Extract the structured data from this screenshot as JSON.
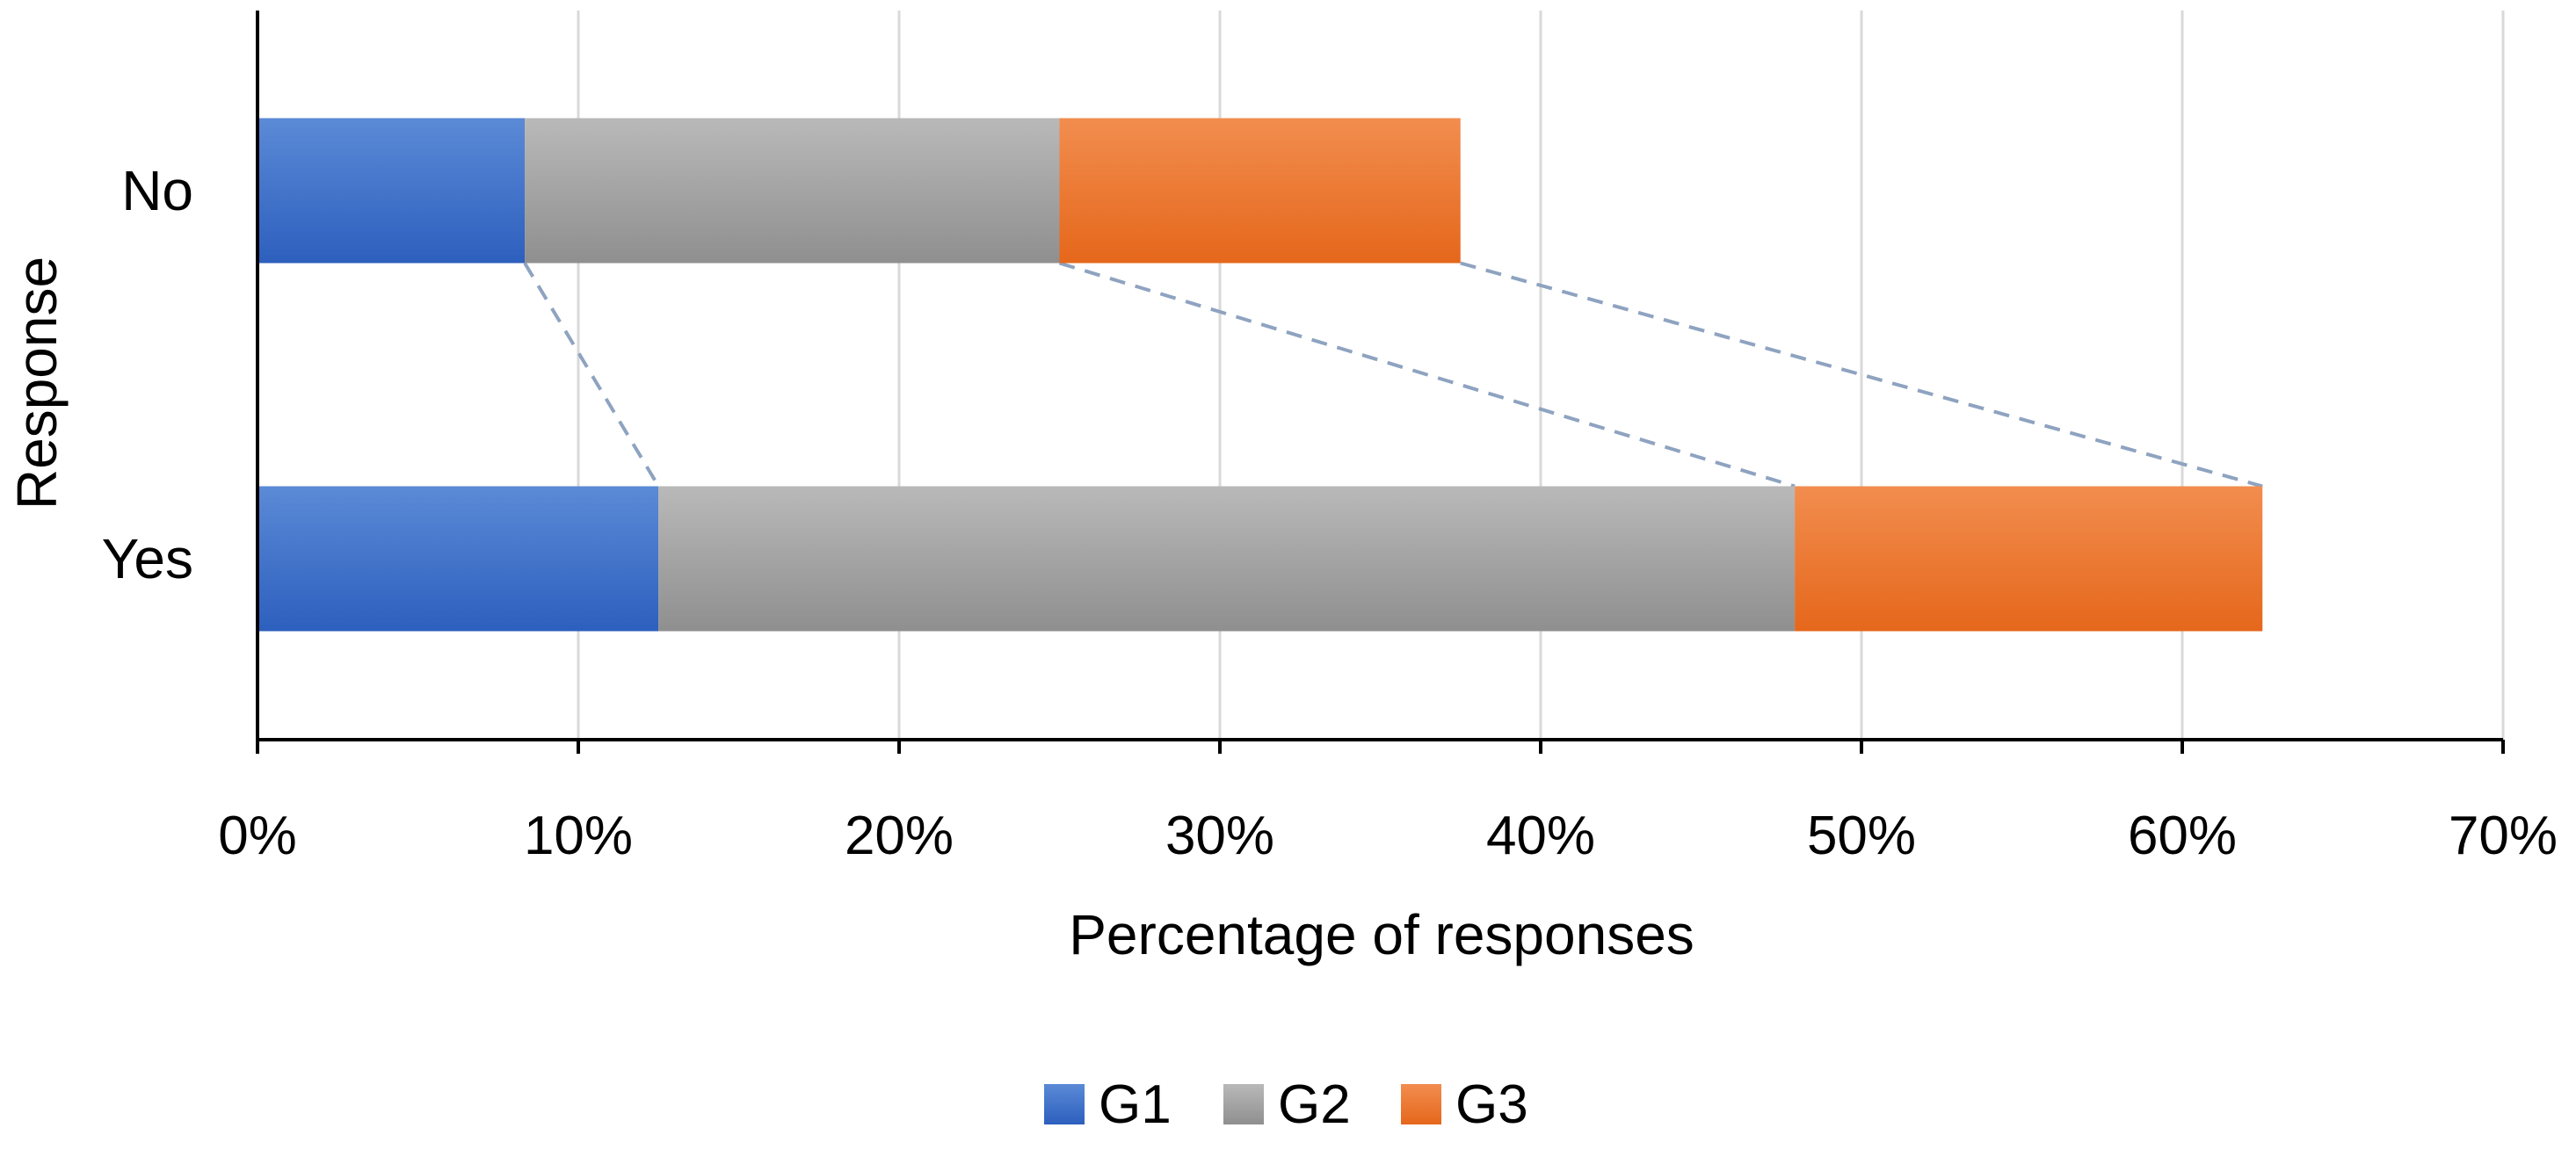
{
  "chart_data": {
    "type": "bar",
    "orientation": "horizontal",
    "stacked": true,
    "title": "",
    "xlabel": "Percentage of responses",
    "ylabel": "Response",
    "categories": [
      "No",
      "Yes"
    ],
    "series": [
      {
        "name": "G1",
        "values": [
          8.33,
          12.5
        ],
        "color": "#4472C4"
      },
      {
        "name": "G2",
        "values": [
          16.67,
          35.42
        ],
        "color": "#A5A5A5"
      },
      {
        "name": "G3",
        "values": [
          12.5,
          14.58
        ],
        "color": "#ED7D31"
      }
    ],
    "xlim": [
      0,
      70
    ],
    "xticks": [
      0,
      10,
      20,
      30,
      40,
      50,
      60,
      70
    ],
    "xtick_labels": [
      "0%",
      "10%",
      "20%",
      "30%",
      "40%",
      "50%",
      "60%",
      "70%"
    ],
    "grid": true,
    "series_lines": true,
    "series_line_color": "#8EA3C0",
    "legend_position": "bottom"
  }
}
